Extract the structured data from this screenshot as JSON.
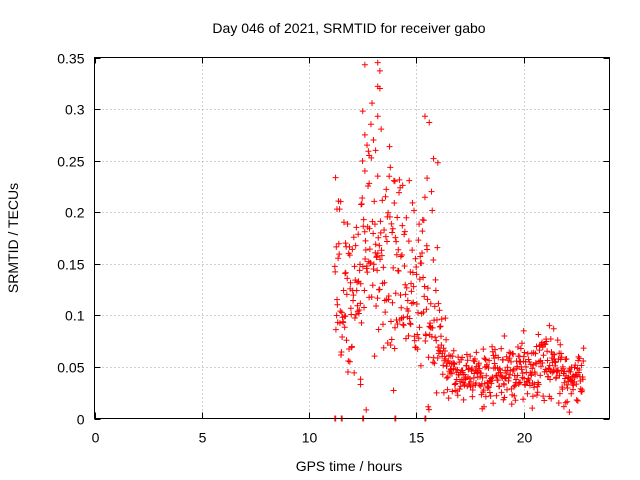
{
  "chart_data": {
    "type": "scatter",
    "title": "Day 046 of 2021, SRMTID for receiver gabo",
    "xlabel": "GPS time / hours",
    "ylabel": "SRMTID / TECUs",
    "xlim": [
      0,
      24
    ],
    "ylim": [
      0,
      0.35
    ],
    "x_ticks": [
      0,
      5,
      10,
      15,
      20
    ],
    "x_tick_labels": [
      "0",
      "5",
      "10",
      "15",
      "20"
    ],
    "y_ticks": [
      0,
      0.05,
      0.1,
      0.15,
      0.2,
      0.25,
      0.3,
      0.35
    ],
    "y_tick_labels": [
      "0",
      "0.05",
      "0.1",
      "0.15",
      "0.2",
      "0.25",
      "0.3",
      "0.35"
    ],
    "grid": true,
    "marker": "+",
    "series": [
      {
        "name": "SRMTID",
        "color": "#ff0000",
        "x_start": 11.2,
        "x_end": 22.8,
        "x_step": 0.017,
        "envelope": [
          [
            11.2,
            0.13,
            0.045
          ],
          [
            11.6,
            0.13,
            0.04
          ],
          [
            12.0,
            0.11,
            0.03
          ],
          [
            12.5,
            0.14,
            0.055
          ],
          [
            13.0,
            0.18,
            0.06
          ],
          [
            13.3,
            0.17,
            0.06
          ],
          [
            13.7,
            0.14,
            0.05
          ],
          [
            14.2,
            0.13,
            0.05
          ],
          [
            14.6,
            0.12,
            0.045
          ],
          [
            15.0,
            0.13,
            0.05
          ],
          [
            15.5,
            0.12,
            0.05
          ],
          [
            16.0,
            0.08,
            0.035
          ],
          [
            16.4,
            0.05,
            0.015
          ],
          [
            17.0,
            0.04,
            0.012
          ],
          [
            18.0,
            0.042,
            0.013
          ],
          [
            19.0,
            0.042,
            0.013
          ],
          [
            20.0,
            0.045,
            0.014
          ],
          [
            20.5,
            0.045,
            0.014
          ],
          [
            21.0,
            0.055,
            0.018
          ],
          [
            21.5,
            0.045,
            0.015
          ],
          [
            22.0,
            0.04,
            0.014
          ],
          [
            22.8,
            0.04,
            0.014
          ]
        ],
        "extra_points": [
          [
            12.6,
            0.343
          ],
          [
            13.2,
            0.345
          ],
          [
            13.3,
            0.337
          ],
          [
            13.2,
            0.322
          ],
          [
            13.3,
            0.32
          ],
          [
            12.5,
            0.298
          ],
          [
            13.2,
            0.293
          ],
          [
            15.4,
            0.293
          ],
          [
            15.6,
            0.287
          ],
          [
            13.0,
            0.27
          ],
          [
            12.6,
            0.275
          ],
          [
            12.7,
            0.265
          ],
          [
            13.1,
            0.26
          ],
          [
            12.8,
            0.255
          ],
          [
            15.8,
            0.252
          ],
          [
            16.0,
            0.248
          ],
          [
            12.6,
            0.24
          ],
          [
            13.2,
            0.235
          ],
          [
            15.5,
            0.233
          ],
          [
            14.0,
            0.23
          ],
          [
            12.8,
            0.228
          ],
          [
            11.3,
            0.203
          ],
          [
            11.7,
            0.17
          ],
          [
            11.9,
            0.055
          ],
          [
            12.4,
            0.038
          ],
          [
            12.4,
            0.033
          ],
          [
            21.2,
            0.09
          ],
          [
            21.4,
            0.087
          ],
          [
            19.1,
            0.08
          ],
          [
            20.0,
            0.085
          ],
          [
            20.4,
            0.01
          ]
        ],
        "zero_points": [
          11.2,
          11.5,
          12.5,
          14.0,
          15.4
        ]
      }
    ]
  }
}
